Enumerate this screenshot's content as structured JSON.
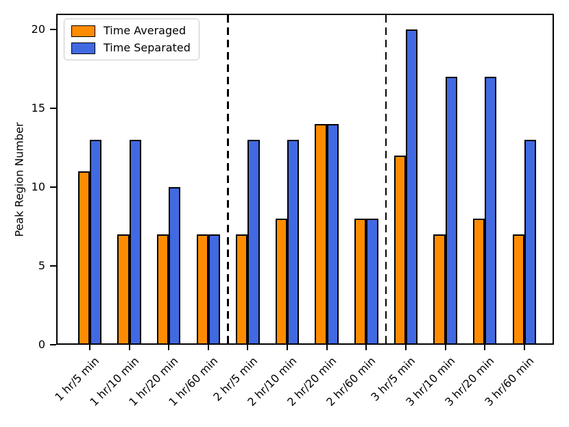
{
  "figure": {
    "background": "#ffffff"
  },
  "chart_data": {
    "type": "bar",
    "title": "",
    "xlabel": "",
    "ylabel": "Peak Region Number",
    "ylim": [
      0,
      21
    ],
    "yticks": [
      0,
      5,
      10,
      15,
      20
    ],
    "grid": false,
    "legend_position": "upper-left",
    "bar_edge_color": "#000000",
    "separator_color": "#000000",
    "separators_x": [
      3.5,
      7.5
    ],
    "categories": [
      "1 hr/5 min",
      "1 hr/10 min",
      "1 hr/20 min",
      "1 hr/60 min",
      "2 hr/5 min",
      "2 hr/10 min",
      "2 hr/20 min",
      "2 hr/60 min",
      "3 hr/5 min",
      "3 hr/10 min",
      "3 hr/20 min",
      "3 hr/60 min"
    ],
    "series": [
      {
        "name": "Time Averaged",
        "color": "#FF8C00",
        "values": [
          11,
          7,
          7,
          7,
          7,
          8,
          14,
          8,
          12,
          7,
          8,
          7
        ]
      },
      {
        "name": "Time Separated",
        "color": "#4169E1",
        "values": [
          13,
          13,
          10,
          7,
          13,
          13,
          14,
          8,
          20,
          17,
          17,
          13
        ]
      }
    ]
  }
}
